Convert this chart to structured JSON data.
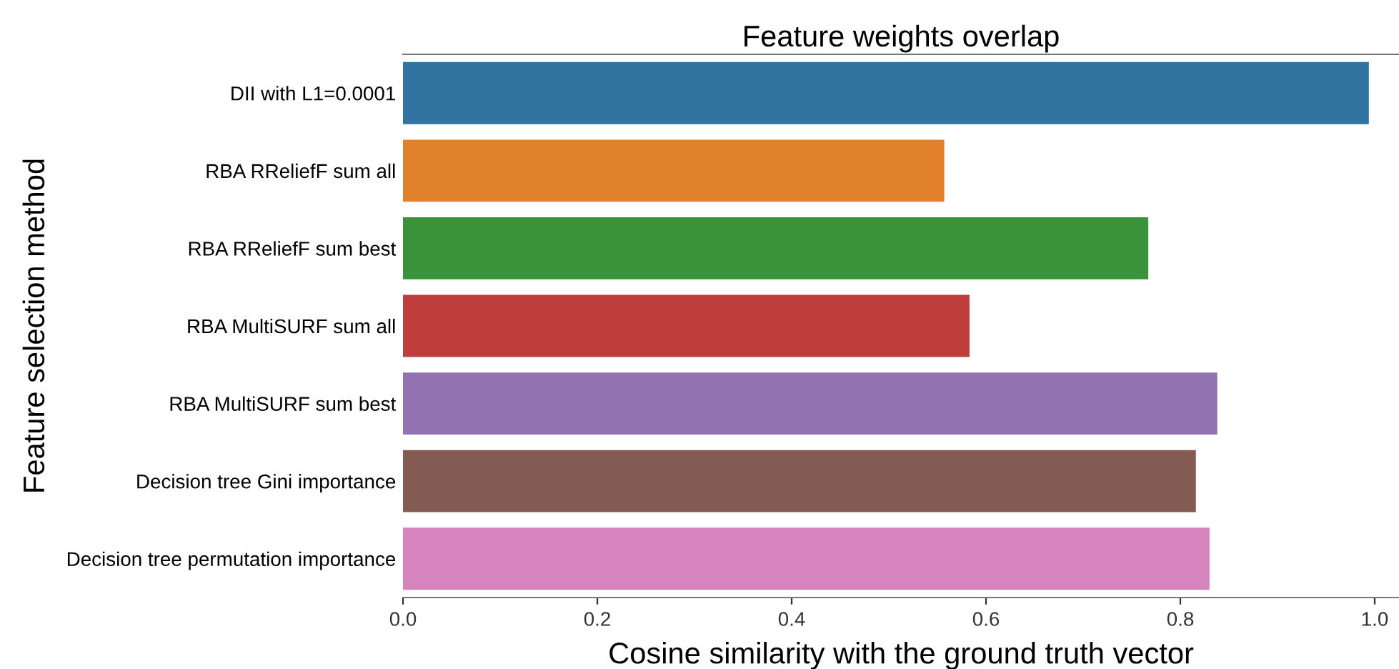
{
  "chart_data": {
    "type": "bar",
    "orientation": "horizontal",
    "title": "Feature weights overlap",
    "xlabel": "Cosine similarity with the ground truth vector",
    "ylabel": "Feature selection method",
    "categories": [
      "DII with L1=0.0001",
      "RBA RReliefF sum all",
      "RBA RReliefF sum best",
      "RBA MultiSURF sum all",
      "RBA MultiSURF sum best",
      "Decision tree Gini importance",
      "Decision tree permutation importance"
    ],
    "values": [
      0.994,
      0.557,
      0.767,
      0.583,
      0.838,
      0.816,
      0.83
    ],
    "colors": [
      "#3274a1",
      "#e1812c",
      "#3a923a",
      "#c03d3e",
      "#9372b2",
      "#845b53",
      "#d684bd"
    ],
    "xlim": [
      0,
      1.025
    ],
    "xticks": [
      {
        "value": 0,
        "label": "0.0"
      },
      0.2,
      0.4,
      0.6,
      0.8,
      {
        "value": 1,
        "label": "1.0"
      }
    ],
    "grid": false
  }
}
